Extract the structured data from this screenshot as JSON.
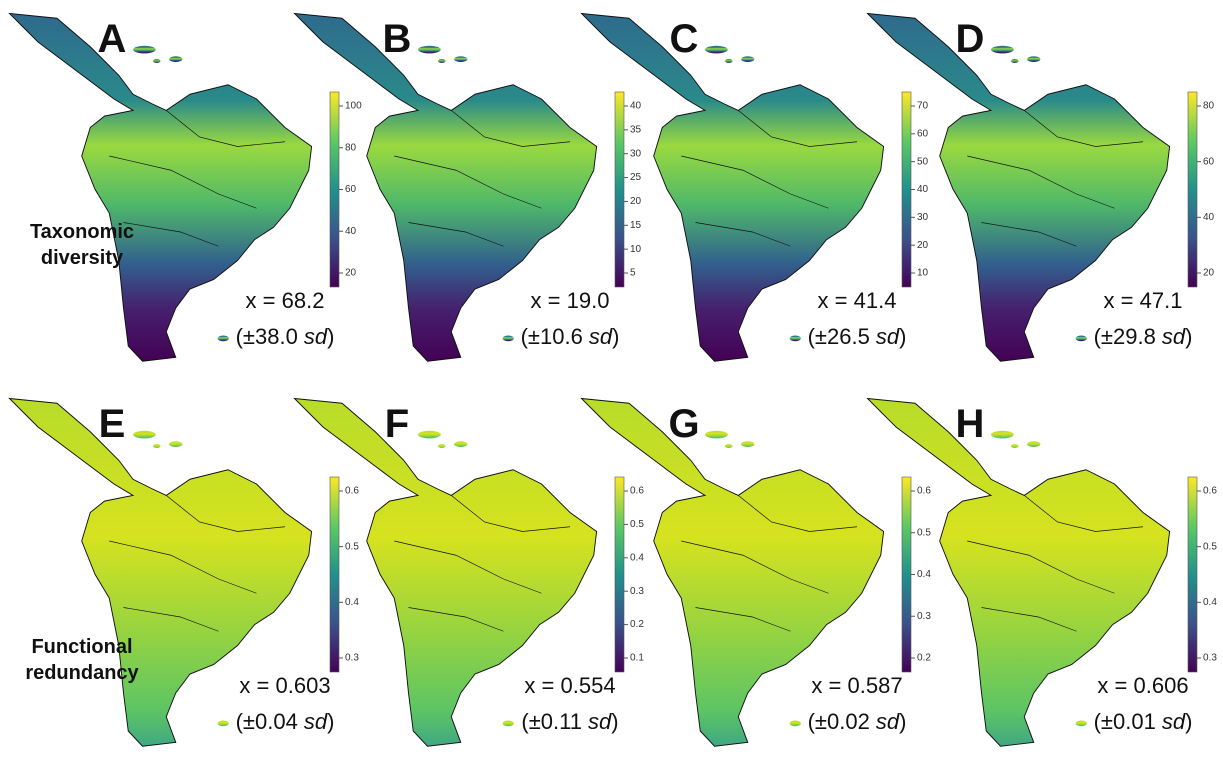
{
  "row_labels": [
    [
      "Taxonomic",
      "diversity"
    ],
    [
      "Functional",
      "redundancy"
    ]
  ],
  "panels": [
    {
      "letter": "A",
      "colorbar_ticks": [
        20,
        40,
        60,
        80,
        100
      ],
      "mean": "x = 68.2",
      "sd_value": "(±38.0",
      "sd_unit": "sd",
      "sd_close": ")"
    },
    {
      "letter": "B",
      "colorbar_ticks": [
        5,
        10,
        15,
        20,
        25,
        30,
        35,
        40
      ],
      "mean": "x = 19.0",
      "sd_value": "(±10.6",
      "sd_unit": "sd",
      "sd_close": ")"
    },
    {
      "letter": "C",
      "colorbar_ticks": [
        10,
        20,
        30,
        40,
        50,
        60,
        70
      ],
      "mean": "x = 41.4",
      "sd_value": "(±26.5",
      "sd_unit": "sd",
      "sd_close": ")"
    },
    {
      "letter": "D",
      "colorbar_ticks": [
        20,
        40,
        60,
        80
      ],
      "mean": "x = 47.1",
      "sd_value": "(±29.8",
      "sd_unit": "sd",
      "sd_close": ")"
    },
    {
      "letter": "E",
      "colorbar_ticks": [
        0.3,
        0.4,
        0.5,
        0.6
      ],
      "mean": "x = 0.603",
      "sd_value": "(±0.04",
      "sd_unit": "sd",
      "sd_close": ")"
    },
    {
      "letter": "F",
      "colorbar_ticks": [
        0.1,
        0.2,
        0.3,
        0.4,
        0.5,
        0.6
      ],
      "mean": "x = 0.554",
      "sd_value": "(±0.11",
      "sd_unit": "sd",
      "sd_close": ")"
    },
    {
      "letter": "G",
      "colorbar_ticks": [
        0.2,
        0.3,
        0.4,
        0.5,
        0.6
      ],
      "mean": "x = 0.587",
      "sd_value": "(±0.02",
      "sd_unit": "sd",
      "sd_close": ")"
    },
    {
      "letter": "H",
      "colorbar_ticks": [
        0.3,
        0.4,
        0.5,
        0.6
      ],
      "mean": "x = 0.606",
      "sd_value": "(±0.01",
      "sd_unit": "sd",
      "sd_close": ")"
    }
  ]
}
